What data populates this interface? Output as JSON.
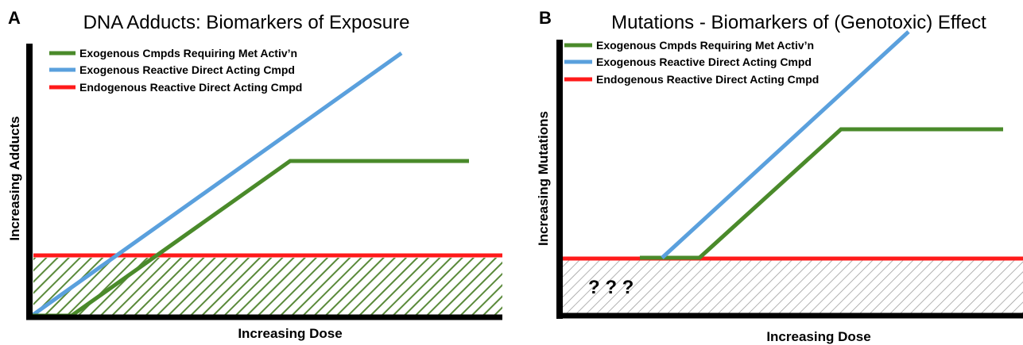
{
  "panels": [
    {
      "letter": "A",
      "title": "DNA Adducts: Biomarkers of Exposure",
      "y_label": "Increasing Adducts",
      "x_label": "Increasing Dose",
      "legend": [
        "Exogenous Cmpds Requiring Met Activ’n",
        "Exogenous Reactive Direct Acting Cmpd",
        "Endogenous Reactive Direct Acting Cmpd"
      ]
    },
    {
      "letter": "B",
      "title": "Mutations - Biomarkers of (Genotoxic) Effect",
      "y_label": "Increasing Mutations",
      "x_label": "Increasing Dose",
      "legend": [
        "Exogenous Cmpds Requiring Met Activ’n",
        "Exogenous Reactive Direct Acting Cmpd",
        "Endogenous Reactive Direct Acting Cmpd"
      ],
      "annotation": "? ? ?"
    }
  ]
}
